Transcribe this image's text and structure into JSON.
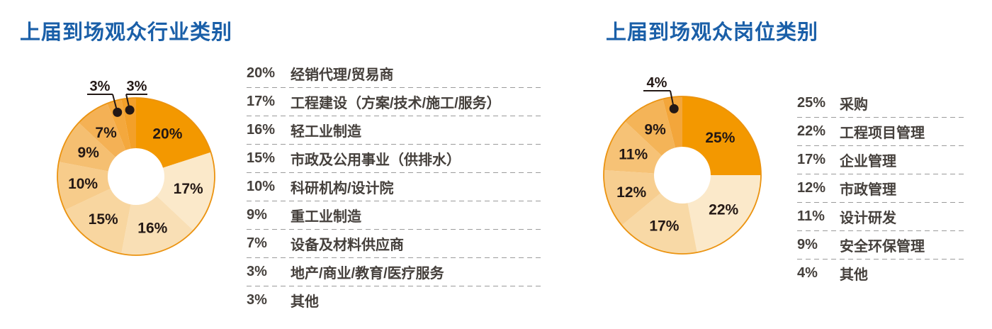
{
  "page": {
    "background": "#FFFFFF",
    "title_color": "#1A5FA8",
    "label_color": "#231815",
    "legend_text_color": "#45403C",
    "separator_color": "#9B9B9B"
  },
  "chart_data": [
    {
      "type": "pie",
      "variant": "donut",
      "title": "上届到场观众行业类别",
      "title_color": "#1A5FA8",
      "legend_position": "right",
      "direction": "clockwise",
      "start_angle_deg": 0,
      "categories": [
        "经销代理/贸易商",
        "工程建设（方案/技术/施工/服务）",
        "轻工业制造",
        "市政及公用事业（供排水）",
        "科研机构/设计院",
        "重工业制造",
        "设备及材料供应商",
        "地产/商业/教育/医疗服务",
        "其他"
      ],
      "values": [
        20,
        17,
        16,
        15,
        10,
        9,
        7,
        3,
        3
      ],
      "labels": [
        "20%",
        "17%",
        "16%",
        "15%",
        "10%",
        "9%",
        "7%",
        "3%",
        "3%"
      ],
      "colors": [
        "#F39800",
        "#FBE9CA",
        "#F9DFB5",
        "#F8D6A0",
        "#F7CC8B",
        "#F5BF71",
        "#F4B155",
        "#F4A83D",
        "#F3A029"
      ],
      "hole_color": "#FFFFFF",
      "outline_color": "#EB9310",
      "callout_slices": [
        7,
        8
      ]
    },
    {
      "type": "pie",
      "variant": "donut",
      "title": "上届到场观众岗位类别",
      "title_color": "#1A5FA8",
      "legend_position": "right",
      "direction": "clockwise",
      "start_angle_deg": 0,
      "categories": [
        "采购",
        "工程项目管理",
        "企业管理",
        "市政管理",
        "设计研发",
        "安全环保管理",
        "其他"
      ],
      "values": [
        25,
        22,
        17,
        12,
        11,
        9,
        4
      ],
      "labels": [
        "25%",
        "22%",
        "17%",
        "12%",
        "11%",
        "9%",
        "4%"
      ],
      "colors": [
        "#F39800",
        "#FBE9CA",
        "#F8D9A6",
        "#F7CE90",
        "#F6C276",
        "#F4B458",
        "#F3A63B"
      ],
      "hole_color": "#FFFFFF",
      "outline_color": "#EB9310",
      "callout_slices": [
        6
      ]
    }
  ]
}
